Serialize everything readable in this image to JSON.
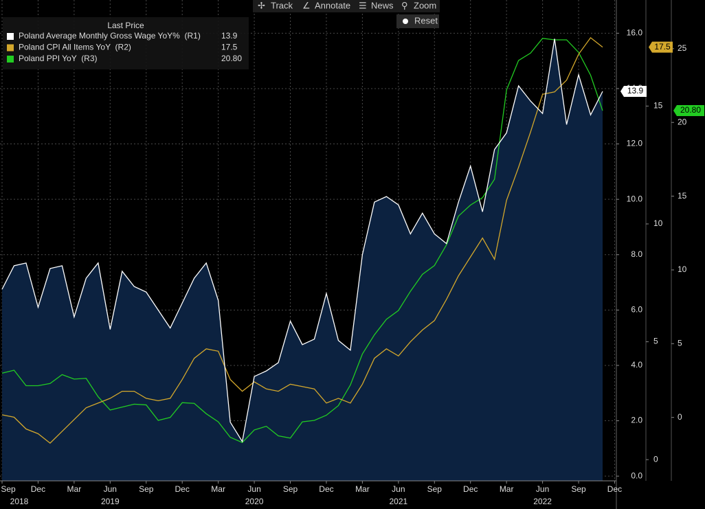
{
  "chart_data": {
    "type": "line",
    "legend_title": "Last Price",
    "categories": [
      "Sep",
      null,
      null,
      "Dec",
      null,
      null,
      "Mar",
      null,
      null,
      "Jun",
      null,
      null,
      "Sep",
      null,
      null,
      "Dec",
      null,
      null,
      "Mar",
      null,
      null,
      "Jun",
      null,
      null,
      "Sep",
      null,
      null,
      "Dec",
      null,
      null,
      "Mar",
      null,
      null,
      "Jun",
      null,
      null,
      "Sep",
      null,
      null,
      "Dec",
      null,
      null,
      "Mar",
      null,
      null,
      "Jun",
      null,
      null,
      "Sep",
      null,
      null,
      "Dec"
    ],
    "years": [
      "2018",
      "2019",
      "2020",
      "2021",
      "2022"
    ],
    "ylim": [
      -0.17,
      17.2
    ],
    "yticks": [
      {
        "value": 0,
        "label": "0.0"
      },
      {
        "value": 2,
        "label": "2.0"
      },
      {
        "value": 4,
        "label": "4.0"
      },
      {
        "value": 6,
        "label": "6.0"
      },
      {
        "value": 8,
        "label": "8.0"
      },
      {
        "value": 10,
        "label": "10.0"
      },
      {
        "value": 12,
        "label": "12.0"
      },
      {
        "value": 14,
        "label": "14.0"
      },
      {
        "value": 16,
        "label": "16.0"
      }
    ],
    "y2lim": [
      -0.9,
      19.5
    ],
    "y2ticks": [
      0,
      5,
      10,
      15
    ],
    "y3lim": [
      -4.3,
      28.3
    ],
    "y3ticks": [
      0,
      5,
      10,
      15,
      20,
      25
    ],
    "grid": true,
    "series": [
      {
        "name": "Poland Average Monthly Gross Wage YoY%  (R1)",
        "color": "#ffffff",
        "fill": "#0c2240",
        "axis": "y",
        "last_price": "13.9",
        "values": [
          6.75,
          7.6,
          7.7,
          6.1,
          7.5,
          7.6,
          5.75,
          7.15,
          7.7,
          5.3,
          7.4,
          6.85,
          6.65,
          6.0,
          5.35,
          6.25,
          7.15,
          7.7,
          6.35,
          1.95,
          1.25,
          3.6,
          3.8,
          4.1,
          5.6,
          4.75,
          4.95,
          6.6,
          4.9,
          4.55,
          8.0,
          9.9,
          10.1,
          9.8,
          8.75,
          9.5,
          8.75,
          8.4,
          9.9,
          11.2,
          9.55,
          11.8,
          12.4,
          14.1,
          13.55,
          13.1,
          15.8,
          12.7,
          14.5,
          13.05,
          13.9,
          null
        ]
      },
      {
        "name": "Poland CPI All Items YoY  (R2)",
        "color": "#d4a82c",
        "axis": "y2",
        "last_price": "17.5",
        "values": [
          1.9,
          1.8,
          1.3,
          1.1,
          0.7,
          1.2,
          1.7,
          2.2,
          2.4,
          2.6,
          2.9,
          2.9,
          2.6,
          2.5,
          2.6,
          3.4,
          4.3,
          4.7,
          4.6,
          3.4,
          2.9,
          3.3,
          3.0,
          2.9,
          3.2,
          3.1,
          3.0,
          2.4,
          2.6,
          2.4,
          3.2,
          4.3,
          4.7,
          4.4,
          5.0,
          5.5,
          5.9,
          6.8,
          7.8,
          8.6,
          9.4,
          8.5,
          11.0,
          12.4,
          13.9,
          15.5,
          15.6,
          16.1,
          17.2,
          17.9,
          17.5,
          null
        ]
      },
      {
        "name": "Poland PPI YoY  (R3)",
        "color": "#22cc22",
        "axis": "y3",
        "last_price": "20.80",
        "values": [
          3.0,
          3.2,
          2.15,
          2.15,
          2.3,
          2.9,
          2.6,
          2.65,
          1.4,
          0.5,
          0.7,
          0.9,
          0.85,
          -0.2,
          0.0,
          1.0,
          0.95,
          0.25,
          -0.3,
          -1.35,
          -1.7,
          -0.85,
          -0.6,
          -1.25,
          -1.4,
          -0.3,
          -0.2,
          0.15,
          0.8,
          2.2,
          4.3,
          5.6,
          6.65,
          7.25,
          8.55,
          9.7,
          10.3,
          11.7,
          13.65,
          14.4,
          14.9,
          16.15,
          22.2,
          24.2,
          24.7,
          25.7,
          25.6,
          25.6,
          24.75,
          23.2,
          20.8,
          null
        ]
      }
    ]
  },
  "toolbar": {
    "track": "Track",
    "annotate": "Annotate",
    "news": "News",
    "zoom": "Zoom",
    "reset": "Reset"
  }
}
